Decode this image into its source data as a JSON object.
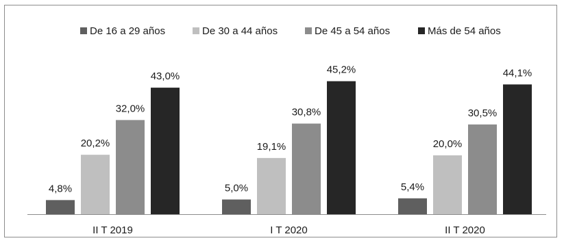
{
  "chart_data": {
    "type": "bar",
    "categories": [
      "II T 2019",
      "I T 2020",
      "II T 2020"
    ],
    "series": [
      {
        "name": "De 16 a 29 años",
        "values": [
          4.8,
          5.0,
          5.4
        ],
        "labels": [
          "4,8%",
          "5,0%",
          "5,4%"
        ],
        "color": "#5f5f5f"
      },
      {
        "name": "De 30 a 44 años",
        "values": [
          20.2,
          19.1,
          20.0
        ],
        "labels": [
          "20,2%",
          "19,1%",
          "20,0%"
        ],
        "color": "#bfbfbf"
      },
      {
        "name": "De 45 a 54 años",
        "values": [
          32.0,
          30.8,
          30.5
        ],
        "labels": [
          "32,0%",
          "30,8%",
          "30,5%"
        ],
        "color": "#8c8c8c"
      },
      {
        "name": "Más de 54 años",
        "values": [
          43.0,
          45.2,
          44.1
        ],
        "labels": [
          "43,0%",
          "45,2%",
          "44,1%"
        ],
        "color": "#262626"
      }
    ],
    "ylim": [
      0,
      50
    ],
    "grid": false,
    "legend": "top-center"
  }
}
